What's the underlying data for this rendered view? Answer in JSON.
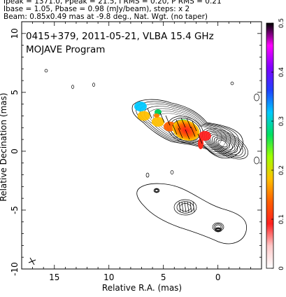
{
  "header": {
    "line1": "Ipeak = 1371.0, Ppeak = 21.5, I RMS = 0.20, P RMS = 0.21",
    "line2": "Ibase = 1.05, Pbase = 0.98 (mJy/beam), steps: x 2",
    "line3": "Beam: 0.85x0.49 mas at -9.8 deg., Nat. Wgt. (no taper)"
  },
  "annotation": {
    "line1": "0415+379, 2011-05-21, VLBA 15.4 GHz",
    "line2": "MOJAVE Program"
  },
  "chart_data": {
    "type": "contour",
    "xlabel": "Relative R.A. (mas)",
    "ylabel": "Relative Decination (mas)",
    "xlim": [
      18,
      -4
    ],
    "ylim": [
      -10,
      11
    ],
    "x_ticks": [
      15,
      10,
      5,
      0
    ],
    "y_ticks": [
      10,
      5,
      0,
      -5,
      -10
    ],
    "grid": false,
    "colorbar": {
      "range": [
        0,
        0.5
      ],
      "ticks": [
        0,
        0.1,
        0.2,
        0.3,
        0.4,
        0.5
      ],
      "tick_labels": [
        "0",
        "0.1",
        "0.2",
        "0.3",
        "0.4",
        "0.5"
      ],
      "colors": [
        "#ffffff",
        "#ffc8c8",
        "#ff2020",
        "#ff6000",
        "#ffc000",
        "#a0ff00",
        "#00e060",
        "#00c8ff",
        "#2040ff",
        "#8000ff",
        "#ff00ff",
        "#000000"
      ]
    },
    "total_intensity_core_mas": [
      0.5,
      0.2
    ],
    "jet_features_mas": [
      {
        "x": 4.4,
        "y": 2.1,
        "frac_pol": 0.12
      },
      {
        "x": 3.2,
        "y": 2.3,
        "frac_pol": 0.28
      },
      {
        "x": 5.5,
        "y": 2.5,
        "frac_pol": 0.2
      },
      {
        "x": 6.8,
        "y": 3.0,
        "frac_pol": 0.18
      },
      {
        "x": 7.1,
        "y": 3.8,
        "frac_pol": 0.33
      },
      {
        "x": 1.2,
        "y": 1.3,
        "frac_pol": 0.1
      }
    ]
  }
}
